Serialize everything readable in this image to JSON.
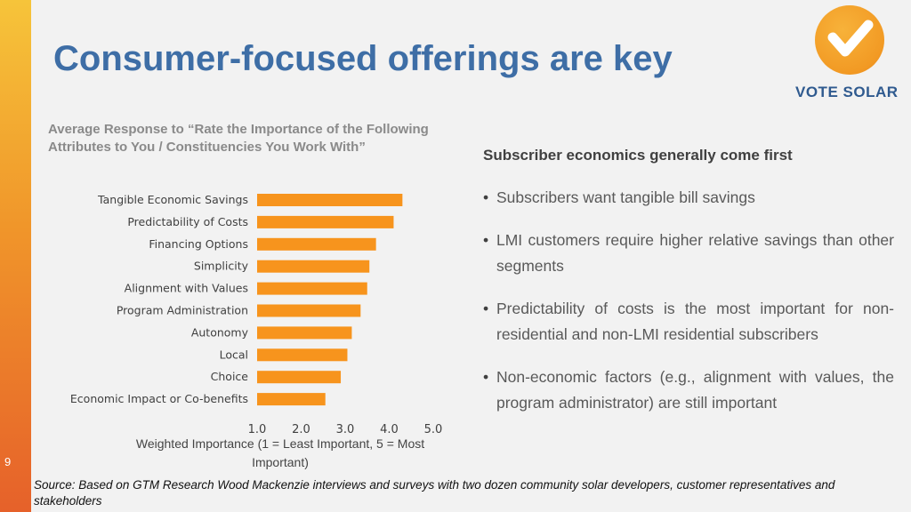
{
  "slide": {
    "title": "Consumer-focused offerings are key",
    "page_number": "9"
  },
  "logo": {
    "text": "VOTE SOLAR",
    "mark": "check-icon"
  },
  "colors": {
    "accent": "#f7941d",
    "title": "#3e6ea6",
    "sidebar_top": "#f6c43a",
    "sidebar_bottom": "#e6612a"
  },
  "chart_data": {
    "type": "bar",
    "orientation": "horizontal",
    "title": "Average Response to “Rate the Importance of the Following Attributes to You / Constituencies You Work With”",
    "categories": [
      "Tangible Economic Savings",
      "Predictability of Costs",
      "Financing Options",
      "Simplicity",
      "Alignment with Values",
      "Program Administration",
      "Autonomy",
      "Local",
      "Choice",
      "Economic Impact or Co-benefits"
    ],
    "values": [
      4.3,
      4.1,
      3.7,
      3.55,
      3.5,
      3.35,
      3.15,
      3.05,
      2.9,
      2.55
    ],
    "xticks": [
      "1.0",
      "2.0",
      "3.0",
      "4.0",
      "5.0"
    ],
    "xlim": [
      1,
      5
    ],
    "xlabel": "Weighted Importance (1 = Least Important, 5 = Most Important)",
    "grid": false,
    "legend": "none"
  },
  "panel": {
    "subhead": "Subscriber economics generally come first",
    "bullets": [
      "Subscribers want tangible bill savings",
      "LMI customers require higher relative savings than other segments",
      "Predictability of costs is the most important for non-residential and non-LMI residential subscribers",
      "Non-economic factors (e.g., alignment with values, the program administrator) are still important"
    ]
  },
  "source": "Source: Based on GTM Research Wood Mackenzie interviews and surveys with two dozen community solar developers, customer representatives and stakeholders"
}
